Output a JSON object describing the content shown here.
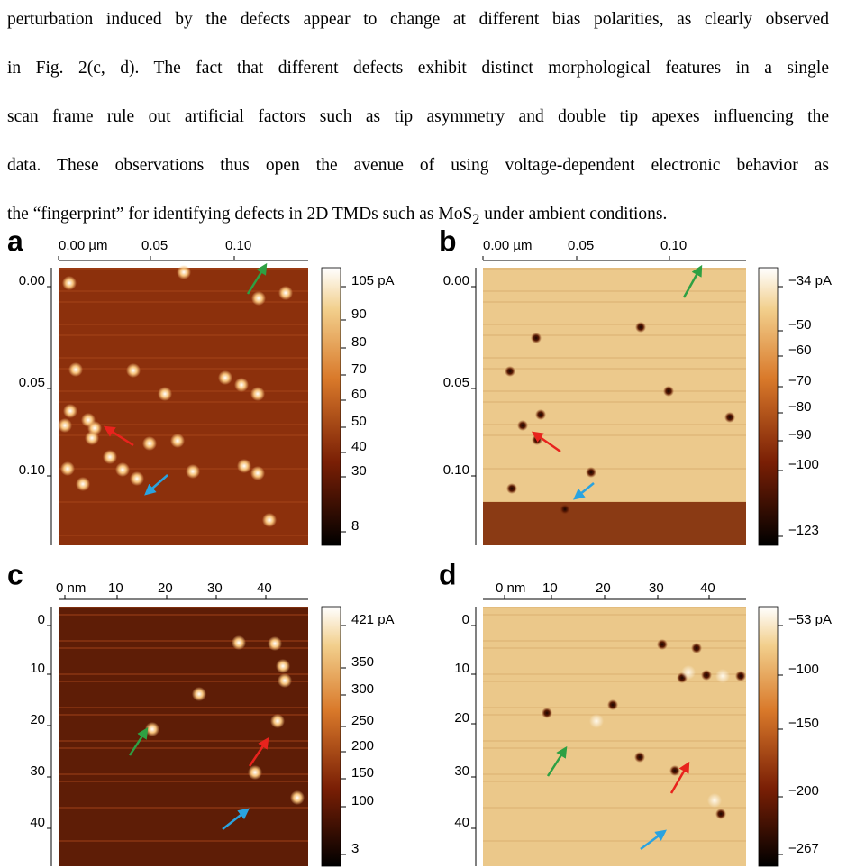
{
  "paragraph": {
    "lines": [
      "perturbation induced by the defects appear to change at different bias polarities, as clearly observed",
      "in Fig. 2(c, d). The fact that different defects exhibit distinct morphological features in a single",
      "scan frame rule out artificial factors such as tip asymmetry and double tip apexes influencing the",
      "data. These observations thus open the avenue of using voltage-dependent electronic behavior as"
    ],
    "last_line": {
      "before": "the “fingerprint” for identifying defects in 2D TMDs such as MoS",
      "subscript": "2",
      "after": " under ambient conditions."
    }
  },
  "figure": {
    "panels": [
      {
        "label": "a",
        "x_ticks": [
          "0.00 µm",
          "0.05",
          "0.10"
        ],
        "y_ticks": [
          "0.00",
          "0.05",
          "0.10"
        ],
        "colorbar_ticks": [
          "105 pA",
          "90",
          "80",
          "70",
          "60",
          "50",
          "40",
          "30",
          "8"
        ]
      },
      {
        "label": "b",
        "x_ticks": [
          "0.00 µm",
          "0.05",
          "0.10"
        ],
        "y_ticks": [
          "0.00",
          "0.05",
          "0.10"
        ],
        "colorbar_ticks": [
          "−34 pA",
          "−50",
          "−60",
          "−70",
          "−80",
          "−90",
          "−100",
          "−123"
        ]
      },
      {
        "label": "c",
        "x_ticks": [
          "0 nm",
          "10",
          "20",
          "30",
          "40"
        ],
        "y_ticks": [
          "0",
          "10",
          "20",
          "30",
          "40"
        ],
        "colorbar_ticks": [
          "421 pA",
          "350",
          "300",
          "250",
          "200",
          "150",
          "100",
          "3"
        ]
      },
      {
        "label": "d",
        "x_ticks": [
          "0 nm",
          "10",
          "20",
          "30",
          "40"
        ],
        "y_ticks": [
          "0",
          "10",
          "20",
          "30",
          "40"
        ],
        "colorbar_ticks": [
          "−53 pA",
          "−100",
          "−150",
          "−200",
          "−267"
        ]
      }
    ]
  }
}
